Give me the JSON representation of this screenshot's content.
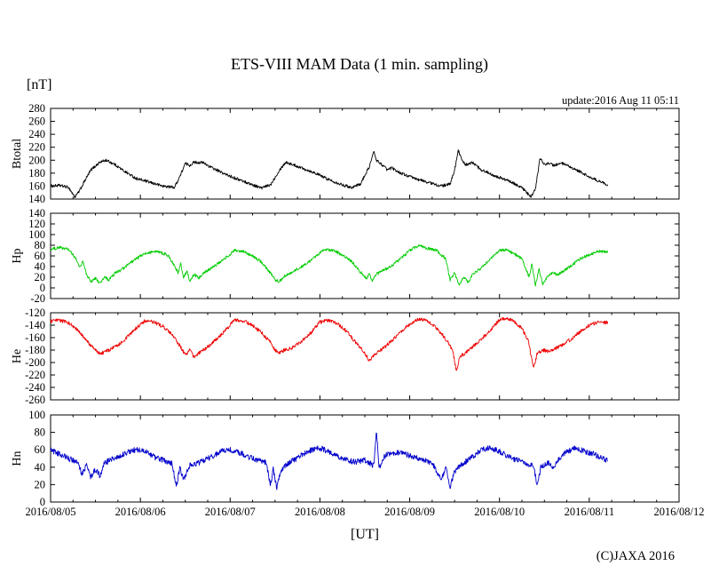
{
  "header": {
    "title": "ETS-VIII MAM Data (1 min. sampling)",
    "unit_label": "[nT]",
    "update_text": "update:2016 Aug 11 05:11"
  },
  "footer": {
    "xaxis_label": "[UT]",
    "copyright": "(C)JAXA 2016"
  },
  "chart_data": {
    "type": "line",
    "title": "ETS-VIII MAM Data (1 min. sampling)",
    "xlabel": "[UT]",
    "ylabel": "[nT]",
    "x_unit": "days since 2016/08/05 00:00 UT",
    "x_range_days": [
      0,
      7
    ],
    "x_major_tick_days": 1,
    "x_minor_tick_days": 0.25,
    "x_tick_labels": [
      "2016/08/05",
      "2016/08/06",
      "2016/08/07",
      "2016/08/08",
      "2016/08/09",
      "2016/08/10",
      "2016/08/11",
      "2016/08/12"
    ],
    "data_end_day": 6.21,
    "grid": false,
    "legend": "none",
    "series": [
      {
        "name": "Btotal",
        "color": "#000000",
        "ylim": [
          140,
          280
        ],
        "ytick_step": 20,
        "noise": 2.2,
        "points": [
          [
            0.0,
            160
          ],
          [
            0.1,
            161
          ],
          [
            0.2,
            158
          ],
          [
            0.27,
            143
          ],
          [
            0.32,
            152
          ],
          [
            0.38,
            168
          ],
          [
            0.45,
            185
          ],
          [
            0.55,
            197
          ],
          [
            0.62,
            200
          ],
          [
            0.72,
            193
          ],
          [
            0.8,
            185
          ],
          [
            0.95,
            172
          ],
          [
            1.1,
            166
          ],
          [
            1.25,
            160
          ],
          [
            1.38,
            158
          ],
          [
            1.45,
            178
          ],
          [
            1.5,
            195
          ],
          [
            1.55,
            192
          ],
          [
            1.6,
            197
          ],
          [
            1.7,
            196
          ],
          [
            1.8,
            188
          ],
          [
            1.95,
            178
          ],
          [
            2.1,
            170
          ],
          [
            2.25,
            162
          ],
          [
            2.35,
            157
          ],
          [
            2.45,
            162
          ],
          [
            2.55,
            185
          ],
          [
            2.62,
            197
          ],
          [
            2.7,
            193
          ],
          [
            2.8,
            188
          ],
          [
            2.95,
            180
          ],
          [
            3.1,
            170
          ],
          [
            3.25,
            162
          ],
          [
            3.35,
            158
          ],
          [
            3.45,
            163
          ],
          [
            3.55,
            190
          ],
          [
            3.6,
            213
          ],
          [
            3.63,
            200
          ],
          [
            3.7,
            192
          ],
          [
            3.75,
            185
          ],
          [
            3.8,
            188
          ],
          [
            3.9,
            180
          ],
          [
            4.05,
            172
          ],
          [
            4.2,
            166
          ],
          [
            4.35,
            160
          ],
          [
            4.45,
            163
          ],
          [
            4.5,
            185
          ],
          [
            4.54,
            216
          ],
          [
            4.58,
            200
          ],
          [
            4.62,
            193
          ],
          [
            4.7,
            196
          ],
          [
            4.8,
            185
          ],
          [
            4.95,
            176
          ],
          [
            5.1,
            168
          ],
          [
            5.25,
            158
          ],
          [
            5.3,
            150
          ],
          [
            5.35,
            143
          ],
          [
            5.4,
            155
          ],
          [
            5.45,
            203
          ],
          [
            5.5,
            193
          ],
          [
            5.55,
            196
          ],
          [
            5.6,
            192
          ],
          [
            5.7,
            195
          ],
          [
            5.8,
            188
          ],
          [
            5.9,
            182
          ],
          [
            6.0,
            174
          ],
          [
            6.1,
            168
          ],
          [
            6.21,
            162
          ]
        ]
      },
      {
        "name": "Hp",
        "color": "#00cc00",
        "ylim": [
          -20,
          140
        ],
        "ytick_step": 20,
        "noise": 2.8,
        "points": [
          [
            0.0,
            72
          ],
          [
            0.1,
            76
          ],
          [
            0.2,
            72
          ],
          [
            0.28,
            55
          ],
          [
            0.33,
            38
          ],
          [
            0.36,
            50
          ],
          [
            0.4,
            25
          ],
          [
            0.45,
            12
          ],
          [
            0.5,
            18
          ],
          [
            0.55,
            8
          ],
          [
            0.6,
            20
          ],
          [
            0.65,
            15
          ],
          [
            0.72,
            28
          ],
          [
            0.8,
            35
          ],
          [
            0.9,
            48
          ],
          [
            1.0,
            60
          ],
          [
            1.1,
            67
          ],
          [
            1.2,
            68
          ],
          [
            1.3,
            62
          ],
          [
            1.38,
            42
          ],
          [
            1.42,
            28
          ],
          [
            1.45,
            45
          ],
          [
            1.48,
            20
          ],
          [
            1.52,
            32
          ],
          [
            1.55,
            12
          ],
          [
            1.6,
            25
          ],
          [
            1.65,
            18
          ],
          [
            1.7,
            28
          ],
          [
            1.8,
            38
          ],
          [
            1.9,
            50
          ],
          [
            2.0,
            63
          ],
          [
            2.05,
            70
          ],
          [
            2.15,
            68
          ],
          [
            2.25,
            60
          ],
          [
            2.35,
            48
          ],
          [
            2.45,
            28
          ],
          [
            2.5,
            15
          ],
          [
            2.55,
            12
          ],
          [
            2.6,
            22
          ],
          [
            2.7,
            30
          ],
          [
            2.8,
            40
          ],
          [
            2.9,
            52
          ],
          [
            3.0,
            65
          ],
          [
            3.05,
            72
          ],
          [
            3.15,
            70
          ],
          [
            3.25,
            62
          ],
          [
            3.35,
            50
          ],
          [
            3.45,
            30
          ],
          [
            3.52,
            18
          ],
          [
            3.55,
            28
          ],
          [
            3.58,
            12
          ],
          [
            3.62,
            25
          ],
          [
            3.7,
            32
          ],
          [
            3.8,
            42
          ],
          [
            3.9,
            55
          ],
          [
            4.0,
            70
          ],
          [
            4.1,
            80
          ],
          [
            4.2,
            74
          ],
          [
            4.3,
            70
          ],
          [
            4.4,
            55
          ],
          [
            4.45,
            15
          ],
          [
            4.5,
            28
          ],
          [
            4.55,
            5
          ],
          [
            4.6,
            20
          ],
          [
            4.65,
            10
          ],
          [
            4.7,
            25
          ],
          [
            4.8,
            38
          ],
          [
            4.9,
            55
          ],
          [
            5.0,
            70
          ],
          [
            5.08,
            72
          ],
          [
            5.15,
            65
          ],
          [
            5.25,
            55
          ],
          [
            5.33,
            20
          ],
          [
            5.36,
            45
          ],
          [
            5.4,
            5
          ],
          [
            5.44,
            35
          ],
          [
            5.48,
            8
          ],
          [
            5.55,
            25
          ],
          [
            5.6,
            28
          ],
          [
            5.65,
            25
          ],
          [
            5.7,
            30
          ],
          [
            5.8,
            42
          ],
          [
            5.9,
            55
          ],
          [
            6.0,
            62
          ],
          [
            6.1,
            68
          ],
          [
            6.21,
            68
          ]
        ]
      },
      {
        "name": "He",
        "color": "#ee0000",
        "ylim": [
          -260,
          -120
        ],
        "ytick_step": 20,
        "noise": 2.8,
        "points": [
          [
            0.0,
            -134
          ],
          [
            0.1,
            -132
          ],
          [
            0.2,
            -136
          ],
          [
            0.3,
            -148
          ],
          [
            0.4,
            -165
          ],
          [
            0.5,
            -180
          ],
          [
            0.55,
            -186
          ],
          [
            0.6,
            -183
          ],
          [
            0.65,
            -180
          ],
          [
            0.75,
            -172
          ],
          [
            0.85,
            -160
          ],
          [
            0.95,
            -145
          ],
          [
            1.05,
            -133
          ],
          [
            1.15,
            -135
          ],
          [
            1.25,
            -142
          ],
          [
            1.35,
            -155
          ],
          [
            1.45,
            -175
          ],
          [
            1.5,
            -188
          ],
          [
            1.55,
            -180
          ],
          [
            1.6,
            -192
          ],
          [
            1.65,
            -185
          ],
          [
            1.75,
            -175
          ],
          [
            1.85,
            -162
          ],
          [
            1.95,
            -148
          ],
          [
            2.05,
            -131
          ],
          [
            2.15,
            -133
          ],
          [
            2.25,
            -140
          ],
          [
            2.35,
            -152
          ],
          [
            2.45,
            -168
          ],
          [
            2.5,
            -180
          ],
          [
            2.55,
            -185
          ],
          [
            2.6,
            -180
          ],
          [
            2.7,
            -176
          ],
          [
            2.8,
            -165
          ],
          [
            2.9,
            -152
          ],
          [
            3.0,
            -135
          ],
          [
            3.1,
            -132
          ],
          [
            3.2,
            -138
          ],
          [
            3.3,
            -150
          ],
          [
            3.4,
            -168
          ],
          [
            3.5,
            -185
          ],
          [
            3.55,
            -197
          ],
          [
            3.6,
            -188
          ],
          [
            3.7,
            -178
          ],
          [
            3.8,
            -165
          ],
          [
            3.9,
            -150
          ],
          [
            4.0,
            -138
          ],
          [
            4.1,
            -130
          ],
          [
            4.2,
            -133
          ],
          [
            4.3,
            -145
          ],
          [
            4.4,
            -162
          ],
          [
            4.48,
            -180
          ],
          [
            4.52,
            -215
          ],
          [
            4.56,
            -190
          ],
          [
            4.62,
            -185
          ],
          [
            4.7,
            -175
          ],
          [
            4.8,
            -162
          ],
          [
            4.9,
            -148
          ],
          [
            5.0,
            -131
          ],
          [
            5.08,
            -129
          ],
          [
            5.15,
            -133
          ],
          [
            5.25,
            -145
          ],
          [
            5.32,
            -165
          ],
          [
            5.38,
            -210
          ],
          [
            5.42,
            -185
          ],
          [
            5.48,
            -180
          ],
          [
            5.55,
            -182
          ],
          [
            5.62,
            -178
          ],
          [
            5.7,
            -172
          ],
          [
            5.8,
            -162
          ],
          [
            5.9,
            -150
          ],
          [
            6.0,
            -140
          ],
          [
            6.1,
            -135
          ],
          [
            6.21,
            -136
          ]
        ]
      },
      {
        "name": "Hn",
        "color": "#0000cc",
        "ylim": [
          0,
          100
        ],
        "ytick_step": 20,
        "noise": 3.2,
        "points": [
          [
            0.0,
            60
          ],
          [
            0.1,
            55
          ],
          [
            0.2,
            50
          ],
          [
            0.3,
            46
          ],
          [
            0.35,
            32
          ],
          [
            0.4,
            42
          ],
          [
            0.45,
            28
          ],
          [
            0.5,
            38
          ],
          [
            0.55,
            30
          ],
          [
            0.6,
            45
          ],
          [
            0.7,
            50
          ],
          [
            0.85,
            57
          ],
          [
            0.95,
            60
          ],
          [
            1.05,
            58
          ],
          [
            1.15,
            52
          ],
          [
            1.25,
            48
          ],
          [
            1.35,
            45
          ],
          [
            1.4,
            18
          ],
          [
            1.44,
            40
          ],
          [
            1.48,
            25
          ],
          [
            1.55,
            42
          ],
          [
            1.65,
            45
          ],
          [
            1.75,
            50
          ],
          [
            1.9,
            58
          ],
          [
            2.0,
            60
          ],
          [
            2.1,
            57
          ],
          [
            2.2,
            52
          ],
          [
            2.3,
            48
          ],
          [
            2.4,
            45
          ],
          [
            2.45,
            20
          ],
          [
            2.48,
            38
          ],
          [
            2.52,
            15
          ],
          [
            2.56,
            35
          ],
          [
            2.65,
            45
          ],
          [
            2.75,
            50
          ],
          [
            2.85,
            58
          ],
          [
            3.0,
            62
          ],
          [
            3.1,
            58
          ],
          [
            3.2,
            52
          ],
          [
            3.3,
            48
          ],
          [
            3.4,
            46
          ],
          [
            3.5,
            48
          ],
          [
            3.55,
            45
          ],
          [
            3.6,
            42
          ],
          [
            3.63,
            82
          ],
          [
            3.66,
            38
          ],
          [
            3.7,
            50
          ],
          [
            3.75,
            55
          ],
          [
            3.85,
            57
          ],
          [
            3.95,
            55
          ],
          [
            4.05,
            52
          ],
          [
            4.15,
            48
          ],
          [
            4.25,
            45
          ],
          [
            4.35,
            25
          ],
          [
            4.4,
            40
          ],
          [
            4.45,
            18
          ],
          [
            4.5,
            35
          ],
          [
            4.6,
            45
          ],
          [
            4.7,
            52
          ],
          [
            4.8,
            60
          ],
          [
            4.9,
            63
          ],
          [
            5.0,
            58
          ],
          [
            5.1,
            52
          ],
          [
            5.2,
            48
          ],
          [
            5.3,
            44
          ],
          [
            5.38,
            42
          ],
          [
            5.42,
            18
          ],
          [
            5.46,
            40
          ],
          [
            5.55,
            45
          ],
          [
            5.6,
            40
          ],
          [
            5.65,
            48
          ],
          [
            5.75,
            58
          ],
          [
            5.85,
            62
          ],
          [
            5.95,
            58
          ],
          [
            6.05,
            55
          ],
          [
            6.15,
            50
          ],
          [
            6.21,
            48
          ]
        ]
      }
    ]
  }
}
